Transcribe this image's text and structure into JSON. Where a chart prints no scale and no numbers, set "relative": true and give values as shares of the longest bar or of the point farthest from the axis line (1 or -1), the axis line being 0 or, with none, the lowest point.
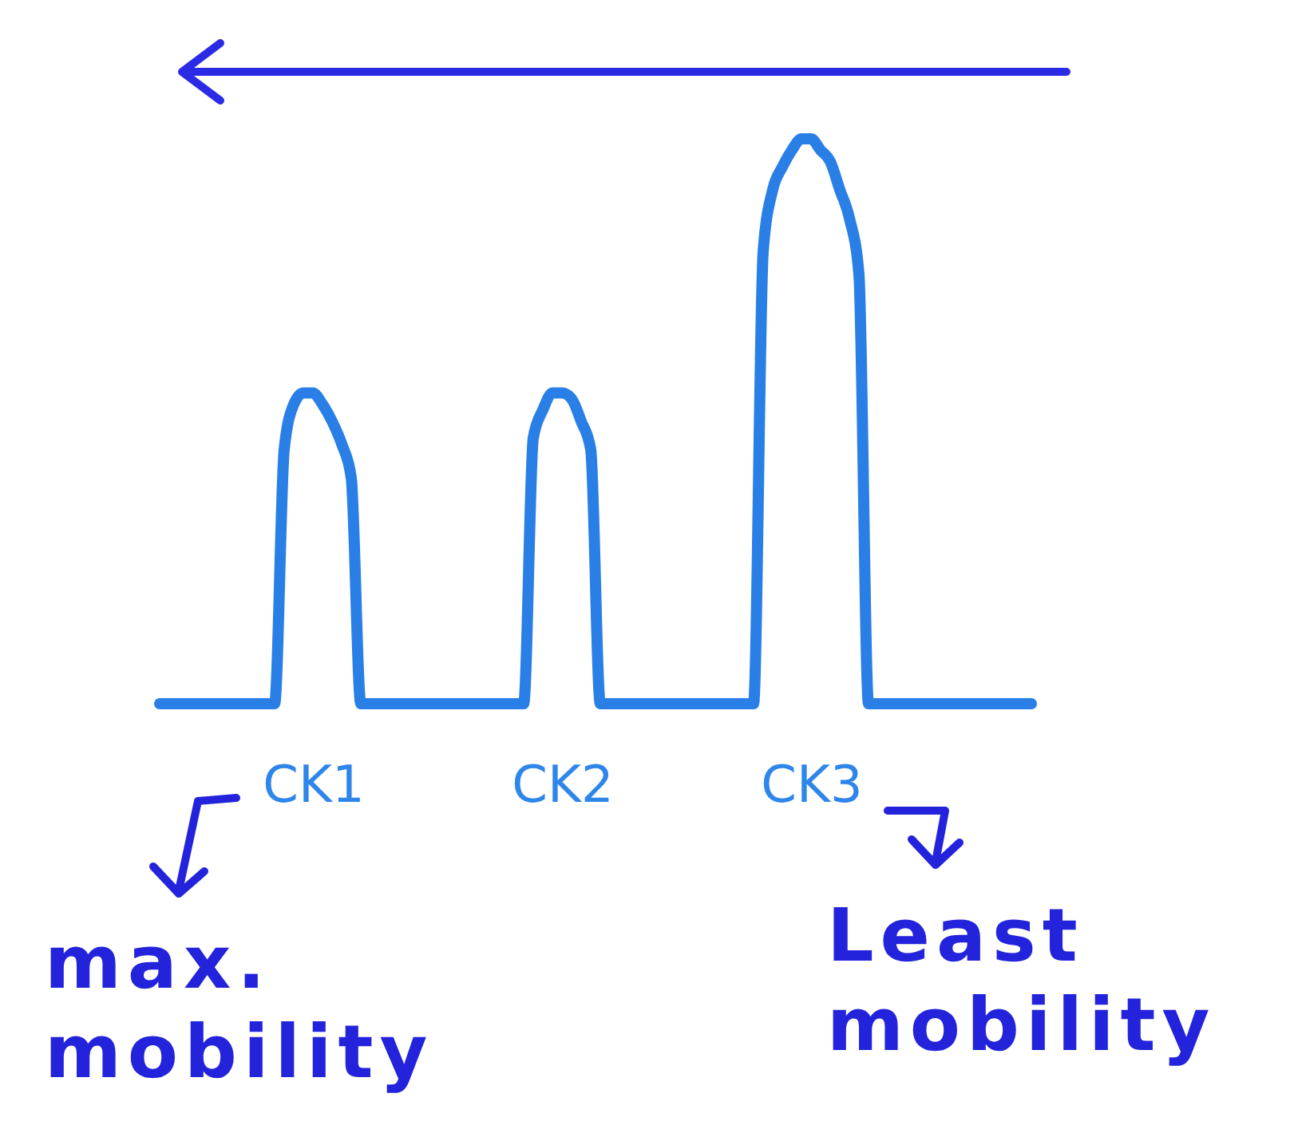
{
  "chart_data": {
    "type": "line",
    "relative": true,
    "categories": [
      null,
      null,
      null,
      null,
      null,
      null,
      null,
      null,
      null,
      null,
      null,
      null,
      null,
      null,
      null,
      null,
      "CK1",
      null,
      null,
      null,
      null,
      null,
      null,
      null,
      null,
      null,
      null,
      null,
      null,
      null,
      null,
      null,
      null,
      null,
      null,
      null,
      null,
      null,
      null,
      null,
      null,
      null,
      "CK2",
      null,
      null,
      null,
      null,
      null,
      null,
      null,
      null,
      null,
      null,
      null,
      null,
      null,
      null,
      null,
      null,
      null,
      null,
      null,
      null,
      null,
      null,
      null,
      null,
      null,
      "CK3",
      null,
      null,
      null,
      null,
      null,
      null,
      null,
      null,
      null,
      null,
      null,
      null,
      null,
      null,
      null,
      null,
      null,
      null,
      null,
      null,
      null,
      null,
      null
    ],
    "series": [
      {
        "color": "#2a7fe6",
        "values": [
          0,
          0,
          0,
          0,
          0,
          0,
          0,
          0,
          0,
          0,
          0,
          0,
          0,
          0.45,
          0.53,
          0.55,
          0.55,
          0.53,
          0.5,
          0.46,
          0.4,
          0,
          0,
          0,
          0,
          0,
          0,
          0,
          0,
          0,
          0,
          0,
          0,
          0,
          0,
          0,
          0,
          0,
          0,
          0.47,
          0.52,
          0.55,
          0.55,
          0.54,
          0.5,
          0.45,
          0,
          0,
          0,
          0,
          0,
          0,
          0,
          0,
          0,
          0,
          0,
          0,
          0,
          0,
          0,
          0,
          0,
          0.8,
          0.91,
          0.95,
          0.98,
          1,
          1,
          0.98,
          0.96,
          0.91,
          0.86,
          0.76,
          0,
          0,
          0,
          0,
          0,
          0,
          0,
          0,
          0,
          0,
          0,
          0,
          0,
          0,
          0,
          0,
          0,
          0
        ]
      }
    ],
    "annotations": [
      "max. mobility",
      "Least mobility"
    ]
  }
}
